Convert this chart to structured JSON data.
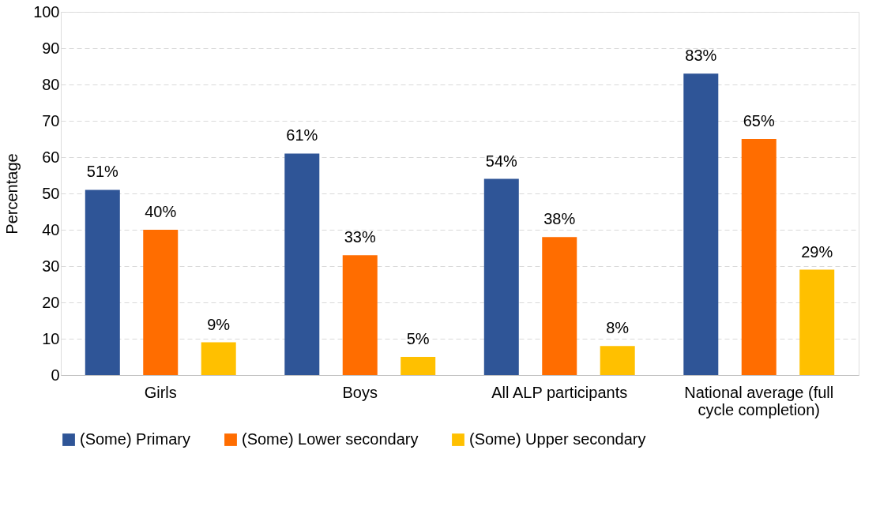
{
  "chart_data": {
    "type": "bar",
    "ylabel": "Percentage",
    "categories": [
      "Girls",
      "Boys",
      "All ALP participants",
      "National average (full cycle completion)"
    ],
    "series": [
      {
        "name": "(Some) Primary",
        "color": "#2f5597",
        "values": [
          51,
          61,
          54,
          83
        ],
        "value_labels": [
          "51%",
          "61%",
          "54%",
          "83%"
        ]
      },
      {
        "name": "(Some) Lower secondary",
        "color": "#ff6d00",
        "values": [
          40,
          33,
          38,
          65
        ],
        "value_labels": [
          "40%",
          "33%",
          "38%",
          "65%"
        ]
      },
      {
        "name": "(Some) Upper secondary",
        "color": "#ffc000",
        "values": [
          9,
          5,
          8,
          29
        ],
        "value_labels": [
          "9%",
          "5%",
          "8%",
          "29%"
        ]
      }
    ],
    "ylim": [
      0,
      100
    ],
    "yticks": [
      0,
      10,
      20,
      30,
      40,
      50,
      60,
      70,
      80,
      90,
      100
    ],
    "grid": "y",
    "legend": "bottom"
  }
}
